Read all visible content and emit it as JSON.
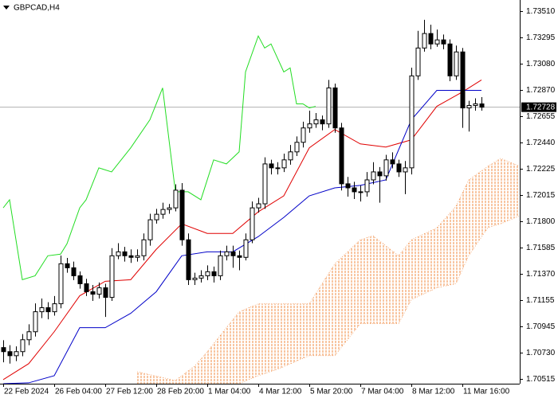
{
  "chart_data": {
    "type": "candlestick",
    "title": "GBPCAD,H4",
    "categories": [
      "22 Feb 2024",
      null,
      null,
      null,
      null,
      null,
      null,
      null,
      "26 Feb 04:00",
      null,
      null,
      null,
      null,
      null,
      null,
      null,
      "27 Feb 12:00",
      null,
      null,
      null,
      null,
      null,
      null,
      null,
      "28 Feb 20:00",
      null,
      null,
      null,
      null,
      null,
      null,
      null,
      "1 Mar 04:00",
      null,
      null,
      null,
      null,
      null,
      null,
      null,
      "4 Mar 12:00",
      null,
      null,
      null,
      null,
      null,
      null,
      null,
      "5 Mar 20:00",
      null,
      null,
      null,
      null,
      null,
      null,
      null,
      "7 Mar 04:00",
      null,
      null,
      null,
      null,
      null,
      null,
      null,
      "8 Mar 12:00",
      null,
      null,
      null,
      null,
      null,
      null,
      null,
      "11 Mar 16:00",
      null,
      null,
      null
    ],
    "open": [
      1.7077,
      1.70737,
      1.70704,
      1.70737,
      1.70834,
      1.70899,
      1.71062,
      1.71095,
      1.71062,
      1.71127,
      1.71453,
      1.7142,
      1.71355,
      1.7129,
      1.71225,
      1.71205,
      1.71257,
      1.71179,
      1.71518,
      1.7155,
      1.71518,
      1.71505,
      1.71518,
      1.71648,
      1.71811,
      1.71856,
      1.71895,
      1.71908,
      1.72052,
      1.71648,
      1.71323,
      1.71336,
      1.71355,
      1.71388,
      1.71355,
      1.71518,
      1.7155,
      1.71518,
      1.71505,
      1.71648,
      1.71908,
      1.71941,
      1.72266,
      1.72234,
      1.72234,
      1.72299,
      1.72364,
      1.72442,
      1.72559,
      1.72592,
      1.72625,
      1.72592,
      1.72885,
      1.72559,
      1.72104,
      1.72071,
      1.72039,
      1.72039,
      1.72136,
      1.72201,
      1.72169,
      1.72299,
      1.72266,
      1.72201,
      1.72234,
      1.72983,
      1.7321,
      1.73328,
      1.73243,
      1.73276,
      1.73243,
      1.72983,
      1.73178,
      1.72722,
      1.72742,
      1.72755
    ],
    "high": [
      1.7083,
      1.7079,
      1.7078,
      1.7088,
      1.7096,
      1.7113,
      1.7117,
      1.7114,
      1.7119,
      1.7152,
      1.715,
      1.7147,
      1.7139,
      1.7133,
      1.7128,
      1.713,
      1.7129,
      1.7158,
      1.7162,
      1.7159,
      1.7157,
      1.7157,
      1.717,
      1.7186,
      1.719,
      1.7195,
      1.7194,
      1.721,
      1.7211,
      1.717,
      1.7138,
      1.714,
      1.7144,
      1.7143,
      1.7156,
      1.716,
      1.716,
      1.7156,
      1.717,
      1.7196,
      1.7199,
      1.7232,
      1.723,
      1.7228,
      1.7235,
      1.7242,
      1.7249,
      1.7261,
      1.727,
      1.7268,
      1.7266,
      1.7295,
      1.7292,
      1.726,
      1.7216,
      1.7212,
      1.7209,
      1.722,
      1.7228,
      1.7224,
      1.7234,
      1.7236,
      1.723,
      1.7229,
      1.7305,
      1.7335,
      1.7344,
      1.734,
      1.7336,
      1.7332,
      1.7328,
      1.7323,
      1.7321,
      1.7278,
      1.728,
      1.7281
    ],
    "low": [
      1.7065,
      1.7064,
      1.7066,
      1.707,
      1.7079,
      1.7086,
      1.7101,
      1.71,
      1.7103,
      1.7109,
      1.7138,
      1.7132,
      1.7125,
      1.7119,
      1.7115,
      1.7117,
      1.7102,
      1.7115,
      1.7149,
      1.7147,
      1.7146,
      1.7147,
      1.7148,
      1.716,
      1.7178,
      1.7182,
      1.7186,
      1.7188,
      1.716,
      1.7128,
      1.7128,
      1.713,
      1.7132,
      1.713,
      1.7132,
      1.7148,
      1.7142,
      1.714,
      1.7148,
      1.7162,
      1.7187,
      1.719,
      1.7218,
      1.7218,
      1.722,
      1.7226,
      1.7233,
      1.724,
      1.7252,
      1.7256,
      1.7254,
      1.7256,
      1.7252,
      1.7205,
      1.72,
      1.7198,
      1.7196,
      1.72,
      1.721,
      1.7195,
      1.7213,
      1.7223,
      1.7216,
      1.7202,
      1.7218,
      1.7295,
      1.7318,
      1.732,
      1.7322,
      1.732,
      1.7294,
      1.7295,
      1.7256,
      1.7253,
      1.727,
      1.727
    ],
    "close": [
      1.70737,
      1.70704,
      1.70737,
      1.70834,
      1.70899,
      1.71062,
      1.71095,
      1.71062,
      1.71127,
      1.71453,
      1.7142,
      1.71355,
      1.7129,
      1.71225,
      1.71205,
      1.71257,
      1.71179,
      1.71518,
      1.7155,
      1.71518,
      1.71505,
      1.71518,
      1.71648,
      1.71811,
      1.71856,
      1.71895,
      1.71908,
      1.72052,
      1.71648,
      1.71323,
      1.71336,
      1.71355,
      1.71388,
      1.71355,
      1.71518,
      1.7155,
      1.71518,
      1.71505,
      1.71648,
      1.71908,
      1.71941,
      1.72266,
      1.72234,
      1.72234,
      1.72299,
      1.72364,
      1.72442,
      1.72559,
      1.72592,
      1.72625,
      1.72592,
      1.72885,
      1.72559,
      1.72104,
      1.72071,
      1.72039,
      1.72039,
      1.72136,
      1.72201,
      1.72169,
      1.72299,
      1.72266,
      1.72201,
      1.72234,
      1.72983,
      1.7321,
      1.73328,
      1.73243,
      1.73276,
      1.73243,
      1.72983,
      1.73178,
      1.72722,
      1.72742,
      1.72755,
      1.72728
    ],
    "bull_color": "#ffffff",
    "bear_color": "#000000",
    "cloud": {
      "color": "#f08c46",
      "x": [
        21,
        27,
        30,
        32,
        35,
        37,
        40,
        43,
        48,
        50,
        52,
        56,
        58,
        62,
        64,
        68,
        71,
        73,
        76,
        78,
        81
      ],
      "upper": [
        1.70574,
        1.70502,
        1.70619,
        1.70737,
        1.70932,
        1.71062,
        1.71127,
        1.71127,
        1.71127,
        1.7129,
        1.71453,
        1.71648,
        1.71681,
        1.71518,
        1.71648,
        1.71746,
        1.71921,
        1.72136,
        1.72247,
        1.72312,
        1.72247
      ],
      "lower": [
        1.70476,
        1.70476,
        1.70476,
        1.70476,
        1.70476,
        1.70476,
        1.70541,
        1.70593,
        1.70704,
        1.70704,
        1.70704,
        1.70964,
        1.70964,
        1.70964,
        1.7116,
        1.71257,
        1.7129,
        1.71518,
        1.71746,
        1.71778,
        1.71843
      ]
    },
    "indicators": [
      {
        "color": "#e00000",
        "x": [
          0,
          4,
          8,
          12,
          16,
          20,
          24,
          28,
          32,
          36,
          40,
          44,
          48,
          52,
          56,
          60,
          64,
          68,
          72,
          75
        ],
        "values": [
          1.70509,
          1.70639,
          1.70899,
          1.71192,
          1.7131,
          1.71323,
          1.7157,
          1.71778,
          1.717,
          1.717,
          1.71876,
          1.72006,
          1.72397,
          1.72546,
          1.72429,
          1.72403,
          1.72462,
          1.72735,
          1.72852,
          1.7295
        ]
      },
      {
        "color": "#0000c8",
        "x": [
          0,
          4,
          8,
          12,
          16,
          20,
          24,
          28,
          32,
          36,
          40,
          44,
          48,
          52,
          56,
          60,
          64,
          68,
          72,
          75
        ],
        "values": [
          1.70476,
          1.70483,
          1.70541,
          1.70932,
          1.70932,
          1.71049,
          1.71225,
          1.71518,
          1.7155,
          1.7155,
          1.71674,
          1.7183,
          1.72006,
          1.72071,
          1.72091,
          1.72136,
          1.72625,
          1.72865,
          1.72865,
          1.72865
        ]
      },
      {
        "color": "#22dd22",
        "x": [
          0,
          1,
          3,
          5,
          7,
          9,
          10,
          12,
          13,
          15,
          17,
          20,
          23,
          25,
          27,
          29,
          31,
          33,
          35,
          37,
          38,
          40,
          41,
          42,
          44,
          45,
          46,
          47,
          48,
          49
        ],
        "values": [
          1.71908,
          1.71974,
          1.71323,
          1.71355,
          1.71518,
          1.71531,
          1.71615,
          1.71908,
          1.71974,
          1.72234,
          1.72201,
          1.72397,
          1.72625,
          1.72885,
          1.72039,
          1.72039,
          1.71974,
          1.72299,
          1.72266,
          1.72364,
          1.73015,
          1.73308,
          1.7321,
          1.73243,
          1.73015,
          1.73048,
          1.72755,
          1.72755,
          1.72722,
          1.72735
        ]
      }
    ],
    "last_price": 1.72728,
    "ylim": [
      1.70476,
      1.73601
    ],
    "yticks": [
      {
        "value": 1.7351,
        "label": "1.73510"
      },
      1.73295,
      {
        "value": 1.7308,
        "label": "1.73080"
      },
      {
        "value": 1.7287,
        "label": "1.72870"
      },
      1.72655,
      {
        "value": 1.7244,
        "label": "1.72440"
      },
      1.72225,
      1.72015,
      {
        "value": 1.718,
        "label": "1.71800"
      },
      1.71585,
      {
        "value": 1.7137,
        "label": "1.71370"
      },
      1.71155,
      1.70945,
      {
        "value": 1.7073,
        "label": "1.70730"
      },
      1.70515
    ]
  }
}
